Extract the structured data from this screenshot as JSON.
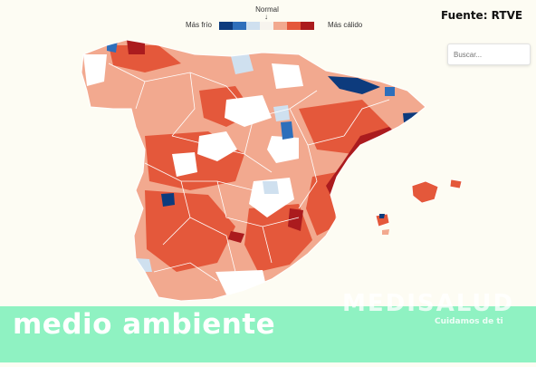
{
  "legend": {
    "normal_label": "Normal",
    "arrow_glyph": "↓",
    "cold_label": "Más frío",
    "warm_label": "Más cálido",
    "scale_colors": [
      "#0d3b7d",
      "#2e6fbb",
      "#cfe0ef",
      "#f7f4ee",
      "#f2a98f",
      "#e4583b",
      "#ab1b1e"
    ]
  },
  "source": {
    "text": "Fuente: RTVE"
  },
  "search": {
    "placeholder": "Buscar..."
  },
  "banner": {
    "title": "medio ambiente",
    "brand": "MEDISALUD",
    "tagline": "Cuidamos de ti",
    "color": "#8ff2c2"
  },
  "map": {
    "colors": {
      "very_cold": "#0d3b7d",
      "cold": "#2e6fbb",
      "cool": "#cfe0ef",
      "normal": "#ffffff",
      "warm": "#f2a98f",
      "hot": "#e4583b",
      "very_hot": "#ab1b1e",
      "sea": "#fdfcf3"
    }
  }
}
